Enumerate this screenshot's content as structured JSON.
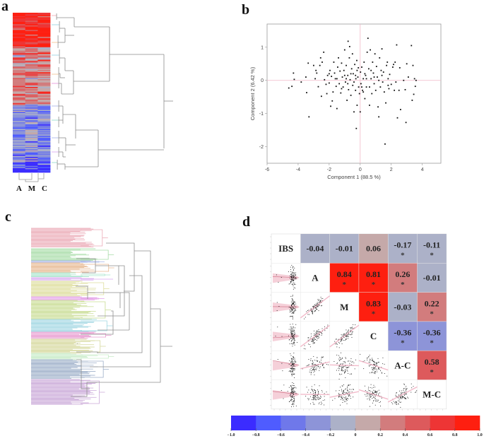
{
  "panels": {
    "a": {
      "label": "a",
      "columns": [
        "A",
        "M",
        "C"
      ]
    },
    "b": {
      "label": "b"
    },
    "c": {
      "label": "c"
    },
    "d": {
      "label": "d"
    }
  },
  "chart_data": [
    {
      "id": "a",
      "type": "heatmap",
      "title": "",
      "columns": [
        "A",
        "M",
        "C"
      ],
      "row_blocks": [
        {
          "color": "red-strong",
          "value": 0.85,
          "share": 0.19
        },
        {
          "color": "mixed-red-grey",
          "value": 0.25,
          "share": 0.32
        },
        {
          "color": "blue-grey",
          "value": -0.35,
          "share": 0.31
        },
        {
          "color": "blue-strong",
          "value": -0.8,
          "share": 0.06
        }
      ],
      "dendrogram": "rows clustered into two major groups (red/up and blue/down)"
    },
    {
      "id": "b",
      "type": "scatter",
      "title": "",
      "xlabel": "Component 1  (88.5 %)",
      "ylabel": "Component 2  (6.42 %)",
      "xlim": [
        -6,
        5.2
      ],
      "ylim": [
        -2.5,
        1.7
      ],
      "xticks": [
        -6,
        -4,
        -2,
        0,
        2,
        4
      ],
      "yticks": [
        -2,
        -1,
        0,
        1
      ],
      "reference_lines": {
        "x": 0,
        "y": 0
      },
      "points": [
        [
          -4.6,
          -0.23
        ],
        [
          -4.4,
          -0.18
        ],
        [
          -4.3,
          0.22
        ],
        [
          -4.25,
          0.03
        ],
        [
          -3.8,
          -0.05
        ],
        [
          -3.5,
          0.1
        ],
        [
          -3.45,
          -0.37
        ],
        [
          -3.35,
          0.52
        ],
        [
          -3.3,
          -1.1
        ],
        [
          -3.0,
          0.45
        ],
        [
          -2.9,
          0.05
        ],
        [
          -2.85,
          0.3
        ],
        [
          -2.8,
          0.22
        ],
        [
          -2.7,
          -0.19
        ],
        [
          -2.6,
          0.45
        ],
        [
          -2.55,
          0.68
        ],
        [
          -2.5,
          -0.48
        ],
        [
          -2.45,
          0.55
        ],
        [
          -2.35,
          0.85
        ],
        [
          -2.3,
          0.02
        ],
        [
          -2.2,
          -0.12
        ],
        [
          -2.15,
          -0.4
        ],
        [
          -2.1,
          0.15
        ],
        [
          -2.0,
          -0.08
        ],
        [
          -1.95,
          0.3
        ],
        [
          -1.9,
          -0.78
        ],
        [
          -1.85,
          0.12
        ],
        [
          -1.8,
          -0.62
        ],
        [
          -1.75,
          -0.35
        ],
        [
          -1.7,
          0.55
        ],
        [
          -1.65,
          0.22
        ],
        [
          -1.6,
          0.05
        ],
        [
          -1.55,
          -0.18
        ],
        [
          -1.5,
          -0.85
        ],
        [
          -1.45,
          0.4
        ],
        [
          -1.4,
          0.68
        ],
        [
          -1.35,
          -0.1
        ],
        [
          -1.3,
          0.28
        ],
        [
          -1.25,
          -0.38
        ],
        [
          -1.2,
          0.52
        ],
        [
          -1.15,
          0.1
        ],
        [
          -1.1,
          -0.2
        ],
        [
          -1.05,
          0.3
        ],
        [
          -1.0,
          0.92
        ],
        [
          -0.95,
          -0.05
        ],
        [
          -0.9,
          0.45
        ],
        [
          -0.85,
          -0.6
        ],
        [
          -0.8,
          0.15
        ],
        [
          -0.78,
          1.18
        ],
        [
          -0.75,
          -0.28
        ],
        [
          -0.7,
          0.68
        ],
        [
          -0.68,
          1.02
        ],
        [
          -0.65,
          0.02
        ],
        [
          -0.6,
          -0.45
        ],
        [
          -0.55,
          0.35
        ],
        [
          -0.5,
          0.8
        ],
        [
          -0.48,
          -0.15
        ],
        [
          -0.45,
          0.2
        ],
        [
          -0.4,
          -0.95
        ],
        [
          -0.35,
          0.48
        ],
        [
          -0.3,
          -0.3
        ],
        [
          -0.28,
          0.05
        ],
        [
          -0.25,
          -1.45
        ],
        [
          -0.22,
          0.6
        ],
        [
          -0.2,
          -0.75
        ],
        [
          -0.15,
          0.1
        ],
        [
          -0.12,
          0.38
        ],
        [
          -0.1,
          -0.2
        ],
        [
          -0.05,
          -0.4
        ],
        [
          0.0,
          -0.95
        ],
        [
          0.02,
          0.25
        ],
        [
          0.05,
          -0.1
        ],
        [
          0.1,
          0.4
        ],
        [
          0.15,
          -0.3
        ],
        [
          0.2,
          0.05
        ],
        [
          0.25,
          0.55
        ],
        [
          0.3,
          -0.55
        ],
        [
          0.35,
          0.15
        ],
        [
          0.4,
          -0.2
        ],
        [
          0.45,
          0.85
        ],
        [
          0.5,
          1.27
        ],
        [
          0.55,
          0.35
        ],
        [
          0.6,
          -0.75
        ],
        [
          0.65,
          0.92
        ],
        [
          0.7,
          0.05
        ],
        [
          0.75,
          -0.4
        ],
        [
          0.8,
          0.55
        ],
        [
          0.85,
          0.22
        ],
        [
          0.9,
          -0.1
        ],
        [
          0.95,
          0.8
        ],
        [
          1.0,
          -0.3
        ],
        [
          1.05,
          0.42
        ],
        [
          1.1,
          0.1
        ],
        [
          1.15,
          -0.8
        ],
        [
          1.2,
          -1.1
        ],
        [
          1.25,
          0.68
        ],
        [
          1.3,
          -0.2
        ],
        [
          1.35,
          0.3
        ],
        [
          1.4,
          0.95
        ],
        [
          1.45,
          -0.05
        ],
        [
          1.5,
          0.25
        ],
        [
          1.55,
          -0.35
        ],
        [
          1.6,
          -1.92
        ],
        [
          1.65,
          -0.68
        ],
        [
          1.7,
          0.45
        ],
        [
          1.75,
          0.55
        ],
        [
          1.8,
          0.05
        ],
        [
          1.85,
          -0.25
        ],
        [
          1.9,
          0.18
        ],
        [
          2.0,
          -0.12
        ],
        [
          2.1,
          0.4
        ],
        [
          2.15,
          0.48
        ],
        [
          2.2,
          -0.3
        ],
        [
          2.25,
          0.55
        ],
        [
          2.3,
          -0.05
        ],
        [
          2.35,
          1.07
        ],
        [
          2.4,
          -1.13
        ],
        [
          2.5,
          -0.3
        ],
        [
          2.55,
          0.38
        ],
        [
          2.6,
          -0.88
        ],
        [
          2.8,
          0.0
        ],
        [
          2.9,
          -0.28
        ],
        [
          2.95,
          -1.27
        ],
        [
          3.0,
          0.5
        ],
        [
          3.1,
          0.1
        ],
        [
          3.3,
          1.05
        ],
        [
          3.35,
          -0.6
        ],
        [
          3.4,
          0.45
        ],
        [
          3.45,
          -0.42
        ],
        [
          3.5,
          0.05
        ],
        [
          3.55,
          -0.18
        ],
        [
          3.6,
          0.0
        ],
        [
          -1.5,
          0.05
        ],
        [
          -1.2,
          -0.25
        ],
        [
          -0.9,
          0.05
        ],
        [
          -0.6,
          0.2
        ],
        [
          -0.3,
          0.15
        ],
        [
          0.3,
          0.2
        ],
        [
          0.6,
          -0.2
        ],
        [
          0.9,
          0.1
        ],
        [
          1.2,
          0.0
        ],
        [
          -0.8,
          -0.1
        ],
        [
          -0.4,
          -0.05
        ],
        [
          0.1,
          -0.2
        ],
        [
          0.4,
          0.05
        ],
        [
          0.7,
          0.3
        ],
        [
          -1.0,
          0.15
        ],
        [
          -0.2,
          0.3
        ],
        [
          0.2,
          -0.35
        ],
        [
          1.4,
          0.15
        ],
        [
          1.8,
          -0.15
        ],
        [
          -2.0,
          0.2
        ]
      ]
    },
    {
      "id": "c",
      "type": "dendrogram",
      "title": "",
      "clusters": [
        "pink",
        "green",
        "blue",
        "orange",
        "mint",
        "violet",
        "yellow",
        "magenta",
        "lime",
        "cyan",
        "rose",
        "olive",
        "pale-green",
        "slate-blue",
        "lavender"
      ]
    },
    {
      "id": "d",
      "type": "table",
      "title": "",
      "variables": [
        "IBS",
        "A",
        "M",
        "C",
        "A-C",
        "M-C"
      ],
      "correlations_upper": [
        {
          "row": "IBS",
          "col": "A",
          "r": -0.04,
          "sig": false
        },
        {
          "row": "IBS",
          "col": "M",
          "r": -0.01,
          "sig": false
        },
        {
          "row": "IBS",
          "col": "C",
          "r": 0.06,
          "sig": false
        },
        {
          "row": "IBS",
          "col": "A-C",
          "r": -0.17,
          "sig": true
        },
        {
          "row": "IBS",
          "col": "M-C",
          "r": -0.11,
          "sig": true
        },
        {
          "row": "A",
          "col": "M",
          "r": 0.84,
          "sig": true
        },
        {
          "row": "A",
          "col": "C",
          "r": 0.81,
          "sig": true
        },
        {
          "row": "A",
          "col": "A-C",
          "r": 0.26,
          "sig": true
        },
        {
          "row": "A",
          "col": "M-C",
          "r": -0.01,
          "sig": false
        },
        {
          "row": "M",
          "col": "C",
          "r": 0.83,
          "sig": true
        },
        {
          "row": "M",
          "col": "A-C",
          "r": -0.03,
          "sig": false
        },
        {
          "row": "M",
          "col": "M-C",
          "r": 0.22,
          "sig": true
        },
        {
          "row": "C",
          "col": "A-C",
          "r": -0.36,
          "sig": true
        },
        {
          "row": "C",
          "col": "M-C",
          "r": -0.36,
          "sig": true
        },
        {
          "row": "A-C",
          "col": "M-C",
          "r": 0.58,
          "sig": true
        }
      ],
      "significance_marker": "*",
      "colorbar": {
        "ticks": [
          "-1.0",
          "-0.8",
          "-0.6",
          "-0.4",
          "-0.2",
          "0",
          "0.2",
          "0.4",
          "0.6",
          "0.8",
          "1.0"
        ],
        "range": [
          -1.0,
          1.0
        ],
        "colors": [
          "#3b2cff",
          "#4f5cff",
          "#6f78ea",
          "#8d94d8",
          "#acb1c8",
          "#c5a9a9",
          "#d27c7d",
          "#dd5a5c",
          "#ee3535",
          "#fe1f10"
        ]
      }
    }
  ]
}
